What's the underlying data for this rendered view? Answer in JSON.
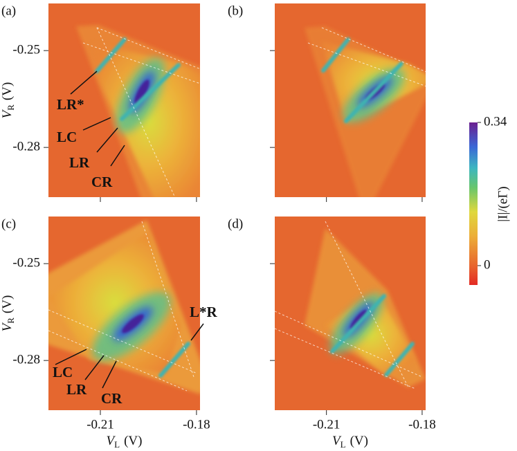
{
  "chart_data": [
    {
      "type": "heatmap",
      "label": "(a)",
      "xlim": [
        -0.2262,
        -0.1789
      ],
      "ylim": [
        -0.2954,
        -0.2354
      ],
      "xticks": [
        -0.21,
        -0.18
      ],
      "yticks": [
        -0.25,
        -0.28
      ],
      "ylabel": {
        "symbol": "V",
        "sub": "R",
        "unit": "(V)"
      },
      "annotations": [
        "LR*",
        "LC",
        "LR",
        "CR"
      ]
    },
    {
      "type": "heatmap",
      "label": "(b)",
      "xlim": [
        -0.2262,
        -0.1789
      ],
      "ylim": [
        -0.2954,
        -0.2354
      ],
      "xticks": [
        -0.21,
        -0.18
      ],
      "yticks": [
        -0.25,
        -0.28
      ]
    },
    {
      "type": "heatmap",
      "label": "(c)",
      "xlim": [
        -0.2262,
        -0.1789
      ],
      "ylim": [
        -0.2954,
        -0.2354
      ],
      "xticks": [
        -0.21,
        -0.18
      ],
      "yticks": [
        -0.25,
        -0.28
      ],
      "ylabel": {
        "symbol": "V",
        "sub": "R",
        "unit": "(V)"
      },
      "xlabel": {
        "symbol": "V",
        "sub": "L",
        "unit": "(V)"
      },
      "annotations": [
        "L*R",
        "LC",
        "LR",
        "CR"
      ]
    },
    {
      "type": "heatmap",
      "label": "(d)",
      "xlim": [
        -0.2262,
        -0.1789
      ],
      "ylim": [
        -0.2954,
        -0.2354
      ],
      "xticks": [
        -0.21,
        -0.18
      ],
      "yticks": [
        -0.25,
        -0.28
      ],
      "xlabel": {
        "symbol": "V",
        "sub": "L",
        "unit": "(V)"
      }
    }
  ],
  "colorbar": {
    "label": "|I|/(eΓ)",
    "lim": [
      -0.046,
      0.34
    ],
    "ticks": [
      0,
      0.34
    ]
  }
}
